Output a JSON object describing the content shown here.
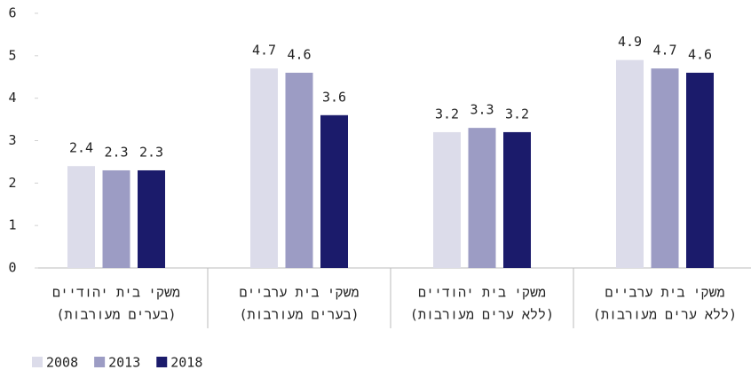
{
  "chart_data": {
    "type": "bar",
    "categories": [
      [
        "משקי בית יהודיים",
        "(בערים מעורבות)"
      ],
      [
        "משקי בית ערביים",
        "(בערים מעורבות)"
      ],
      [
        "משקי בית יהודיים",
        "(ללא ערים מעורבות)"
      ],
      [
        "משקי בית ערביים",
        "(ללא ערים מעורבות)"
      ]
    ],
    "series": [
      {
        "name": "2008",
        "color": "#dcdcea",
        "values": [
          2.4,
          4.7,
          3.2,
          4.9
        ]
      },
      {
        "name": "2013",
        "color": "#9c9cc4",
        "values": [
          2.3,
          4.6,
          3.3,
          4.7
        ]
      },
      {
        "name": "2018",
        "color": "#1b1b6b",
        "values": [
          2.3,
          3.6,
          3.2,
          4.6
        ]
      }
    ],
    "ylim": [
      0,
      6
    ],
    "yticks": [
      0,
      1,
      2,
      3,
      4,
      5,
      6
    ],
    "grid": false,
    "legend": "bottom-left"
  }
}
